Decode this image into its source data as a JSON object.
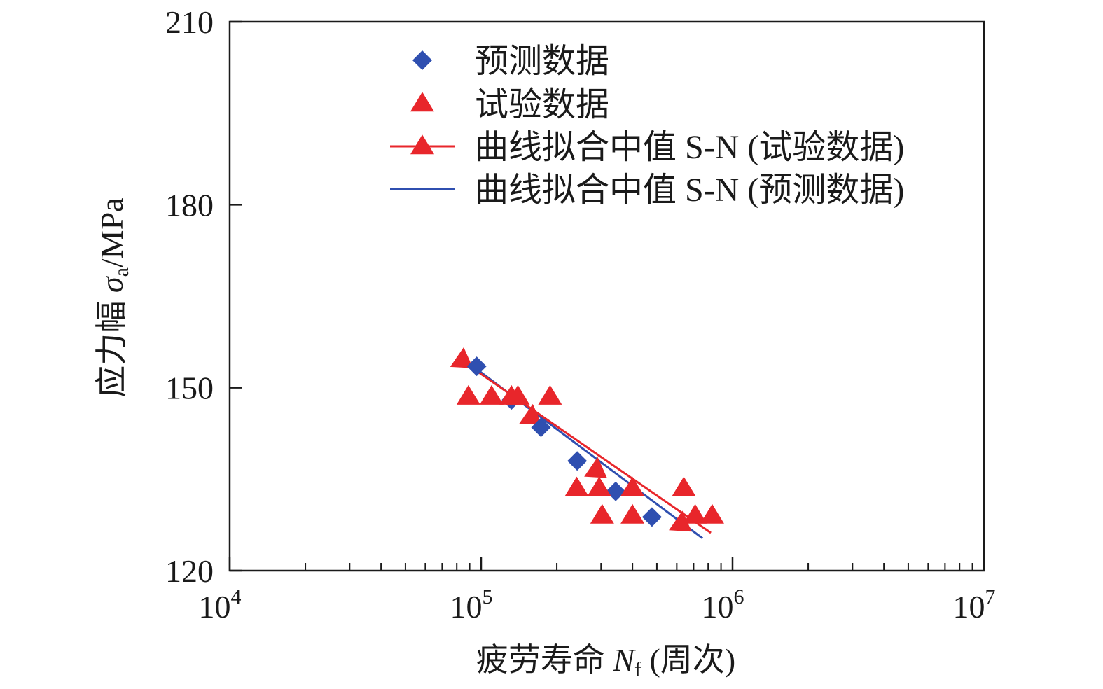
{
  "chart_data": {
    "type": "scatter",
    "title": "",
    "xlabel": "疲劳寿命 N_f (周次)",
    "xlabel_parts": {
      "prefix": "疲劳寿命 ",
      "symbol": "N",
      "subscript": "f",
      "suffix": " (周次)"
    },
    "ylabel": "应力幅 σ_a/MPa",
    "ylabel_parts": {
      "prefix": "应力幅 ",
      "symbol": "σ",
      "subscript": "a",
      "suffix": "/MPa"
    },
    "xscale": "log",
    "xlim": [
      10000,
      10000000
    ],
    "ylim": [
      120,
      210
    ],
    "xticks": [
      {
        "value": 10000,
        "base": "10",
        "exp": "4"
      },
      {
        "value": 100000,
        "base": "10",
        "exp": "5"
      },
      {
        "value": 1000000,
        "base": "10",
        "exp": "6"
      },
      {
        "value": 10000000,
        "base": "10",
        "exp": "7"
      }
    ],
    "yticks": [
      {
        "value": 120,
        "label": "120"
      },
      {
        "value": 150,
        "label": "150"
      },
      {
        "value": 180,
        "label": "180"
      },
      {
        "value": 210,
        "label": "210"
      }
    ],
    "legend_position": "top-right",
    "series": [
      {
        "name": "预测数据",
        "kind": "scatter",
        "marker": "diamond",
        "color": "#2f4fb0",
        "points": [
          [
            96000,
            153.5
          ],
          [
            132000,
            148
          ],
          [
            173000,
            143.5
          ],
          [
            241000,
            138
          ],
          [
            343000,
            133
          ],
          [
            478000,
            128.8
          ]
        ]
      },
      {
        "name": "试验数据",
        "kind": "scatter",
        "marker": "triangle",
        "color": "#e8262b",
        "points": [
          [
            89000,
            148.5
          ],
          [
            110000,
            148.5
          ],
          [
            132000,
            148.5
          ],
          [
            140000,
            148.5
          ],
          [
            188000,
            148.5
          ],
          [
            240000,
            133.5
          ],
          [
            295000,
            133.5
          ],
          [
            400000,
            133.5
          ],
          [
            640000,
            133.5
          ],
          [
            303000,
            129
          ],
          [
            400000,
            129
          ],
          [
            710000,
            129
          ],
          [
            830000,
            129
          ]
        ]
      },
      {
        "name": "曲线拟合中值 S-N (试验数据)",
        "kind": "line",
        "marker": "triangle",
        "color": "#e8262b",
        "line": [
          [
            80000,
            155
          ],
          [
            820000,
            126.2
          ]
        ],
        "markers": [
          [
            85000,
            154.3
          ],
          [
            160000,
            145
          ],
          [
            290000,
            136.3
          ],
          [
            630000,
            127.5
          ]
        ]
      },
      {
        "name": "曲线拟合中值 S-N (预测数据)",
        "kind": "line",
        "marker": "none",
        "color": "#2f4fb0",
        "line": [
          [
            83000,
            155
          ],
          [
            760000,
            125.3
          ]
        ]
      }
    ]
  }
}
